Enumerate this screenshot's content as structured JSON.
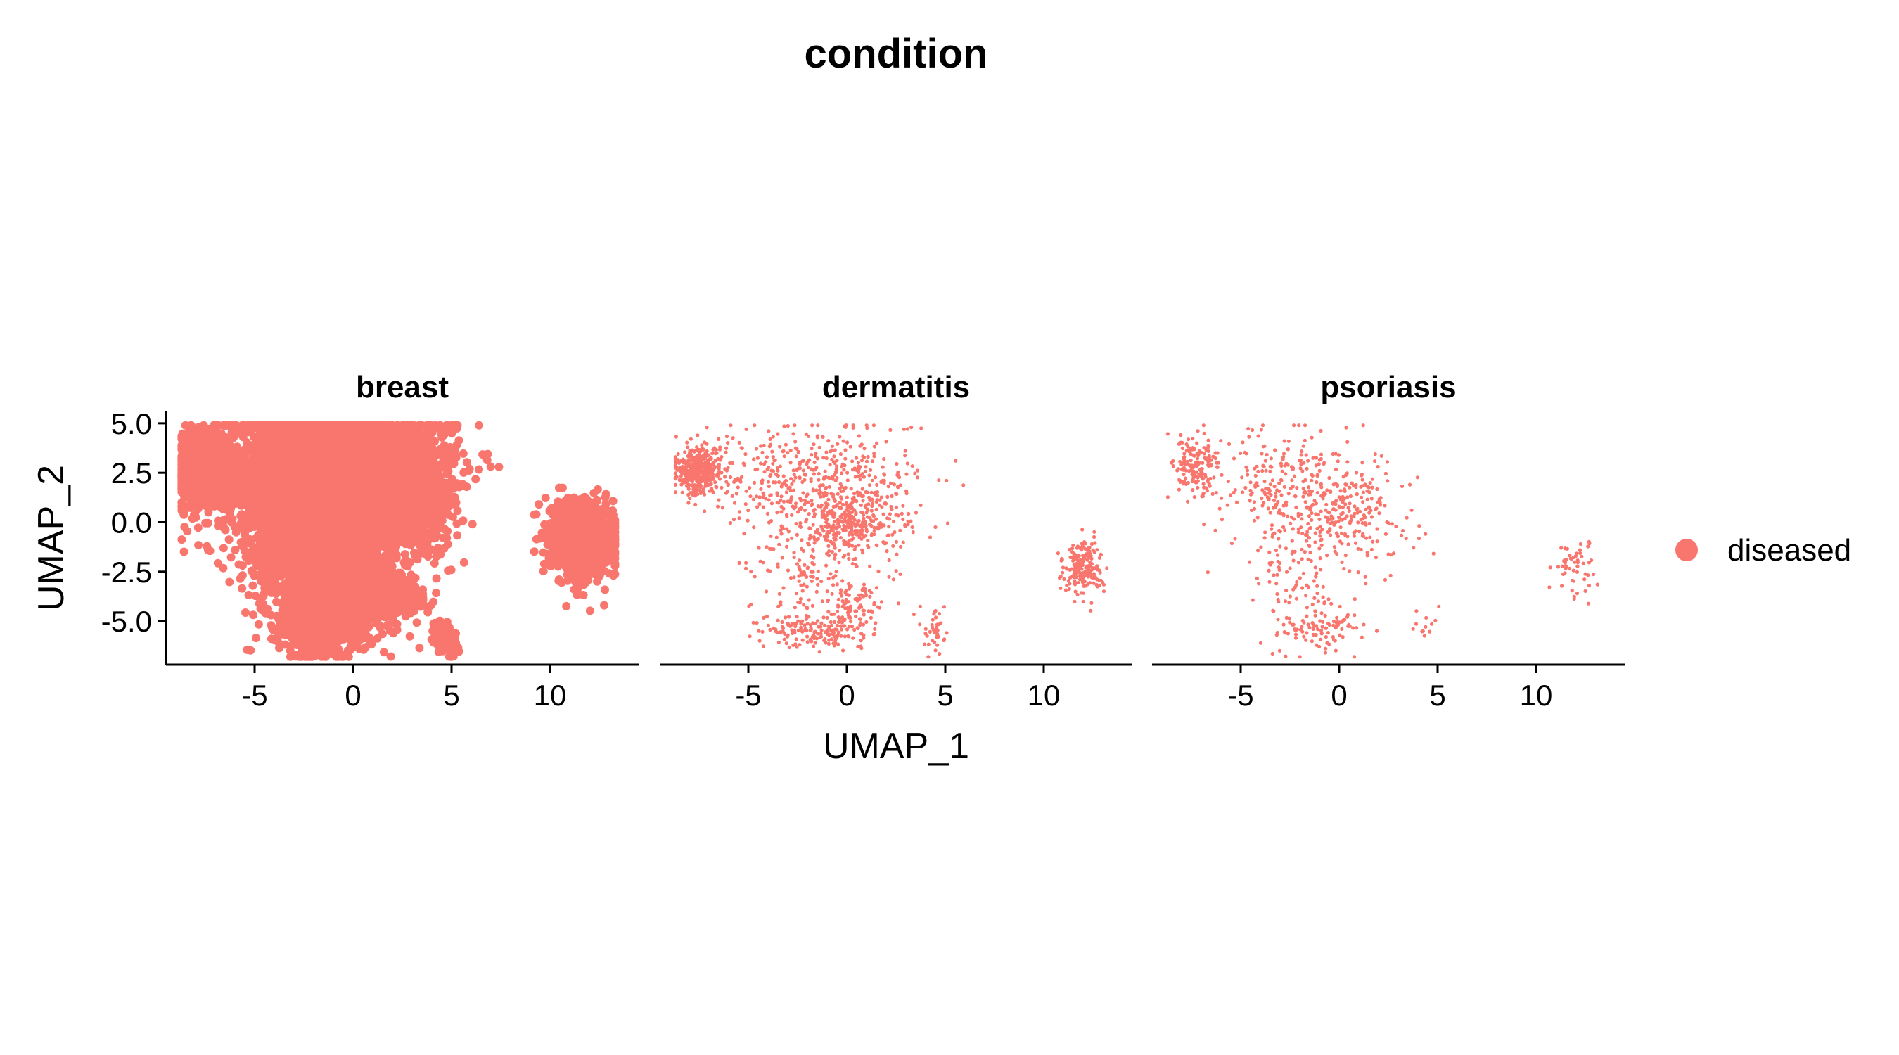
{
  "chart_data": {
    "type": "scatter",
    "title": "condition",
    "xlabel": "UMAP_1",
    "ylabel": "UMAP_2",
    "xlim": [
      -9.5,
      14.5
    ],
    "ylim": [
      -7.2,
      5.6
    ],
    "xticks": [
      -5,
      0,
      5,
      10
    ],
    "xtick_labels": [
      "-5",
      "0",
      "5",
      "10"
    ],
    "yticks": [
      5.0,
      2.5,
      0.0,
      -2.5,
      -5.0
    ],
    "ytick_labels": [
      "5.0",
      "2.5",
      "0.0",
      "-2.5",
      "-5.0"
    ],
    "grid": false,
    "legend_position": "right",
    "legend": [
      {
        "label": "diseased",
        "color": "#F8766D"
      }
    ],
    "series_color": "#F8766D",
    "facets": [
      {
        "label": "breast",
        "density": "very high",
        "clusters": [
          {
            "cx": -7.5,
            "cy": 2.7,
            "sx": 0.7,
            "sy": 1.0,
            "n": 900
          },
          {
            "cx": -2.5,
            "cy": 2.5,
            "sx": 2.0,
            "sy": 1.6,
            "n": 2600
          },
          {
            "cx": 1.2,
            "cy": 2.2,
            "sx": 1.9,
            "sy": 1.7,
            "n": 2200
          },
          {
            "cx": -1.5,
            "cy": -1.5,
            "sx": 1.8,
            "sy": 1.7,
            "n": 1800
          },
          {
            "cx": -1.5,
            "cy": -5.2,
            "sx": 1.2,
            "sy": 0.8,
            "n": 700
          },
          {
            "cx": 3.0,
            "cy": 0.5,
            "sx": 0.7,
            "sy": 0.9,
            "n": 500
          },
          {
            "cx": 2.0,
            "cy": -3.8,
            "sx": 0.8,
            "sy": 0.5,
            "n": 300
          },
          {
            "cx": 4.5,
            "cy": -5.7,
            "sx": 0.25,
            "sy": 0.35,
            "n": 90
          },
          {
            "cx": 5.0,
            "cy": -6.3,
            "sx": 0.15,
            "sy": 0.25,
            "n": 40
          },
          {
            "cx": 11.7,
            "cy": -0.9,
            "sx": 0.8,
            "sy": 0.9,
            "n": 900
          },
          {
            "cx": 11.0,
            "cy": 0.6,
            "sx": 0.35,
            "sy": 0.3,
            "n": 120
          }
        ]
      },
      {
        "label": "dermatitis",
        "density": "medium",
        "clusters": [
          {
            "cx": -7.5,
            "cy": 2.6,
            "sx": 0.6,
            "sy": 0.6,
            "n": 420
          },
          {
            "cx": -3.0,
            "cy": 2.2,
            "sx": 2.2,
            "sy": 1.3,
            "n": 260
          },
          {
            "cx": 0.5,
            "cy": 1.2,
            "sx": 1.8,
            "sy": 1.7,
            "n": 320
          },
          {
            "cx": 0.0,
            "cy": -0.1,
            "sx": 0.9,
            "sy": 0.6,
            "n": 180
          },
          {
            "cx": -2.0,
            "cy": -2.0,
            "sx": 1.5,
            "sy": 1.6,
            "n": 160
          },
          {
            "cx": -1.5,
            "cy": -5.5,
            "sx": 1.3,
            "sy": 0.4,
            "n": 160
          },
          {
            "cx": 0.5,
            "cy": -4.2,
            "sx": 0.6,
            "sy": 0.7,
            "n": 90
          },
          {
            "cx": 4.5,
            "cy": -5.5,
            "sx": 0.3,
            "sy": 0.6,
            "n": 40
          },
          {
            "cx": 12.0,
            "cy": -2.3,
            "sx": 0.5,
            "sy": 0.7,
            "n": 200
          }
        ]
      },
      {
        "label": "psoriasis",
        "density": "low",
        "clusters": [
          {
            "cx": -7.3,
            "cy": 2.8,
            "sx": 0.6,
            "sy": 0.8,
            "n": 160
          },
          {
            "cx": -3.0,
            "cy": 1.8,
            "sx": 2.0,
            "sy": 1.5,
            "n": 230
          },
          {
            "cx": 0.5,
            "cy": 0.3,
            "sx": 1.6,
            "sy": 1.5,
            "n": 230
          },
          {
            "cx": -2.0,
            "cy": -2.5,
            "sx": 1.3,
            "sy": 1.6,
            "n": 110
          },
          {
            "cx": -1.0,
            "cy": -5.5,
            "sx": 1.2,
            "sy": 0.5,
            "n": 90
          },
          {
            "cx": 4.5,
            "cy": -5.3,
            "sx": 0.3,
            "sy": 0.6,
            "n": 12
          },
          {
            "cx": 12.0,
            "cy": -2.3,
            "sx": 0.6,
            "sy": 0.8,
            "n": 55
          }
        ]
      }
    ]
  }
}
